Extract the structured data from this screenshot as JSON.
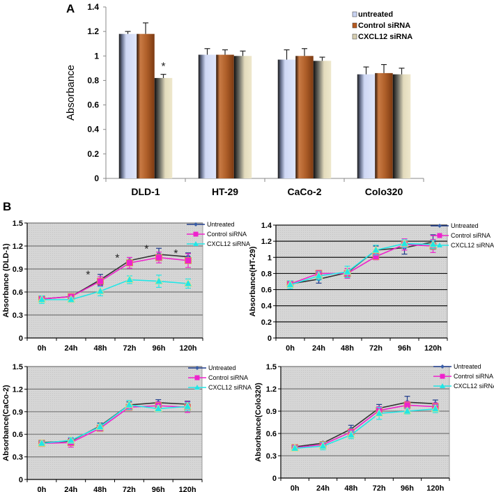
{
  "figure": {
    "panel_a_letter": "A",
    "panel_b_letter": "B"
  },
  "colors": {
    "untreated_bar": "#cfd8f4",
    "control_bar": "#a85a28",
    "cxcl12_bar": "#e8dfc0",
    "untreated_line": "#1f3b8c",
    "control_line": "#ee22cc",
    "cxcl12_line": "#22e6e6",
    "plot_bg": "#d4d4d4"
  },
  "chart_data": [
    {
      "id": "A",
      "type": "bar",
      "title": "",
      "xlabel": "",
      "ylabel": "Absorbance",
      "ylim": [
        0,
        1.4
      ],
      "yticks": [
        "0",
        "0.2",
        "0.4",
        "0.6",
        "0.8",
        "1",
        "1.2",
        "1.4"
      ],
      "categories": [
        "DLD-1",
        "HT-29",
        "CaCo-2",
        "Colo320"
      ],
      "legend_position": "top-right",
      "series": [
        {
          "name": "untreated",
          "values": [
            1.18,
            1.01,
            0.97,
            0.85
          ],
          "errors": [
            0.02,
            0.05,
            0.08,
            0.06
          ]
        },
        {
          "name": "Control siRNA",
          "values": [
            1.18,
            1.01,
            1.0,
            0.86
          ],
          "errors": [
            0.09,
            0.04,
            0.06,
            0.07
          ]
        },
        {
          "name": "CXCL12 siRNA",
          "values": [
            0.82,
            1.0,
            0.96,
            0.85
          ],
          "errors": [
            0.03,
            0.04,
            0.03,
            0.05
          ]
        }
      ],
      "annotations": [
        {
          "category": "DLD-1",
          "series": "CXCL12 siRNA",
          "text": "*"
        }
      ],
      "grid": false
    },
    {
      "id": "B1",
      "type": "line",
      "ylabel": "Absorbance (DLD-1)",
      "ylim": [
        0,
        1.5
      ],
      "yticks": [
        "0",
        "0.3",
        "0.6",
        "0.9",
        "1.2",
        "1.5"
      ],
      "x": [
        "0h",
        "24h",
        "48h",
        "72h",
        "96h",
        "120h"
      ],
      "legend_position": "top-right",
      "grid": true,
      "series": [
        {
          "name": "Untreated",
          "values": [
            0.51,
            0.54,
            0.76,
            1.01,
            1.09,
            1.06
          ],
          "errors": [
            0.03,
            0.03,
            0.07,
            0.04,
            0.08,
            0.05
          ]
        },
        {
          "name": "Control siRNA",
          "values": [
            0.51,
            0.54,
            0.74,
            0.98,
            1.05,
            1.01
          ],
          "errors": [
            0.03,
            0.03,
            0.06,
            0.07,
            0.07,
            0.09
          ]
        },
        {
          "name": "CXCL12 siRNA",
          "values": [
            0.5,
            0.5,
            0.61,
            0.76,
            0.74,
            0.71
          ],
          "errors": [
            0.05,
            0.03,
            0.06,
            0.05,
            0.08,
            0.06
          ]
        }
      ],
      "annotations": [
        {
          "x": "48h",
          "text": "*"
        },
        {
          "x": "72h",
          "text": "*"
        },
        {
          "x": "96h",
          "text": "*"
        },
        {
          "x": "120h",
          "text": "*"
        }
      ]
    },
    {
      "id": "B2",
      "type": "line",
      "ylabel": "Absorbance(HT-29)",
      "ylim": [
        0,
        1.4
      ],
      "yticks": [
        "0",
        "0.2",
        "0.4",
        "0.6",
        "0.8",
        "1",
        "1.2",
        "1.4"
      ],
      "x": [
        "0h",
        "24h",
        "48h",
        "72h",
        "96h",
        "120h"
      ],
      "legend_position": "top-right",
      "grid": true,
      "series": [
        {
          "name": "Untreated",
          "values": [
            0.67,
            0.73,
            0.81,
            1.09,
            1.12,
            1.19
          ],
          "errors": [
            0.03,
            0.05,
            0.05,
            0.05,
            0.08,
            0.09
          ]
        },
        {
          "name": "Control siRNA",
          "values": [
            0.67,
            0.8,
            0.8,
            1.01,
            1.16,
            1.14
          ],
          "errors": [
            0.03,
            0.04,
            0.06,
            0.04,
            0.07,
            0.08
          ]
        },
        {
          "name": "CXCL12 siRNA",
          "values": [
            0.66,
            0.77,
            0.82,
            1.09,
            1.17,
            1.16
          ],
          "errors": [
            0.05,
            0.05,
            0.07,
            0.06,
            0.05,
            0.05
          ]
        }
      ]
    },
    {
      "id": "B3",
      "type": "line",
      "ylabel": "Absorbance(CaCo-2)",
      "ylim": [
        0,
        1.5
      ],
      "yticks": [
        "0",
        "0.3",
        "0.6",
        "0.9",
        "1.2",
        "1.5"
      ],
      "x": [
        "0h",
        "24h",
        "48h",
        "72h",
        "96h",
        "120h"
      ],
      "legend_position": "top-right",
      "grid": true,
      "series": [
        {
          "name": "Untreated",
          "values": [
            0.49,
            0.51,
            0.71,
            0.99,
            1.02,
            1.0
          ],
          "errors": [
            0.03,
            0.03,
            0.04,
            0.04,
            0.04,
            0.04
          ]
        },
        {
          "name": "Control siRNA",
          "values": [
            0.48,
            0.49,
            0.68,
            0.96,
            0.98,
            0.96
          ],
          "errors": [
            0.04,
            0.06,
            0.04,
            0.04,
            0.05,
            0.07
          ]
        },
        {
          "name": "CXCL12 siRNA",
          "values": [
            0.48,
            0.52,
            0.7,
            0.99,
            0.94,
            0.97
          ],
          "errors": [
            0.03,
            0.04,
            0.04,
            0.06,
            0.04,
            0.05
          ]
        }
      ]
    },
    {
      "id": "B4",
      "type": "line",
      "ylabel": "Absorbance(Colo320)",
      "ylim": [
        0,
        1.5
      ],
      "yticks": [
        "0",
        "0.3",
        "0.6",
        "0.9",
        "1.2",
        "1.5"
      ],
      "x": [
        "0h",
        "24h",
        "48h",
        "72h",
        "96h",
        "120h"
      ],
      "legend_position": "top-right",
      "grid": true,
      "series": [
        {
          "name": "Untreated",
          "values": [
            0.42,
            0.47,
            0.66,
            0.94,
            1.02,
            1.0
          ],
          "errors": [
            0.02,
            0.02,
            0.05,
            0.05,
            0.08,
            0.05
          ]
        },
        {
          "name": "Control siRNA",
          "values": [
            0.41,
            0.45,
            0.62,
            0.91,
            0.98,
            0.96
          ],
          "errors": [
            0.03,
            0.03,
            0.04,
            0.05,
            0.05,
            0.05
          ]
        },
        {
          "name": "CXCL12 siRNA",
          "values": [
            0.4,
            0.43,
            0.58,
            0.87,
            0.9,
            0.93
          ],
          "errors": [
            0.03,
            0.05,
            0.05,
            0.08,
            0.04,
            0.05
          ]
        }
      ]
    }
  ]
}
